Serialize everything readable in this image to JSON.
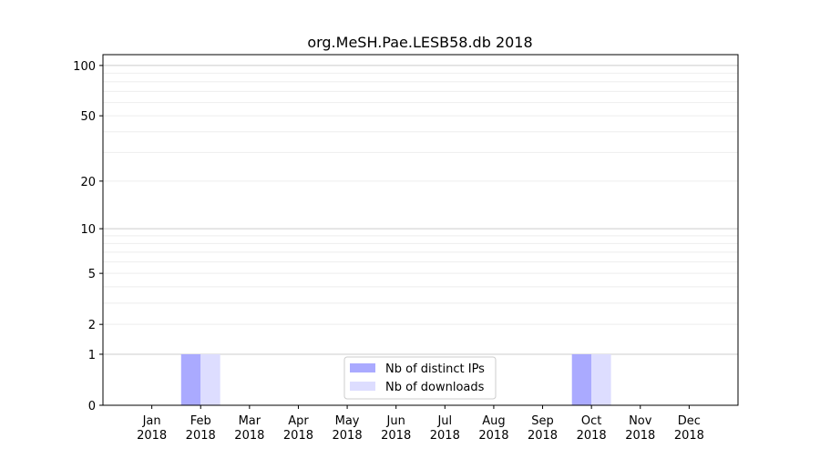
{
  "chart_data": {
    "type": "bar",
    "title": "org.MeSH.Pae.LESB58.db 2018",
    "xlabel": "",
    "ylabel": "",
    "y_scale": "log(1+y)",
    "ylim": [
      0,
      116
    ],
    "yticks": [
      0,
      1,
      2,
      5,
      10,
      20,
      50,
      100
    ],
    "grid": true,
    "legend_position": "bottom-center",
    "categories": [
      [
        "Jan",
        "2018"
      ],
      [
        "Feb",
        "2018"
      ],
      [
        "Mar",
        "2018"
      ],
      [
        "Apr",
        "2018"
      ],
      [
        "May",
        "2018"
      ],
      [
        "Jun",
        "2018"
      ],
      [
        "Jul",
        "2018"
      ],
      [
        "Aug",
        "2018"
      ],
      [
        "Sep",
        "2018"
      ],
      [
        "Oct",
        "2018"
      ],
      [
        "Nov",
        "2018"
      ],
      [
        "Dec",
        "2018"
      ]
    ],
    "series": [
      {
        "name": "Nb of distinct IPs",
        "color": "#aaaaff",
        "values": [
          0,
          1,
          0,
          0,
          0,
          0,
          0,
          0,
          0,
          1,
          0,
          0
        ]
      },
      {
        "name": "Nb of downloads",
        "color": "#ddddff",
        "values": [
          0,
          1,
          0,
          0,
          0,
          0,
          0,
          0,
          0,
          1,
          0,
          0
        ]
      }
    ]
  }
}
